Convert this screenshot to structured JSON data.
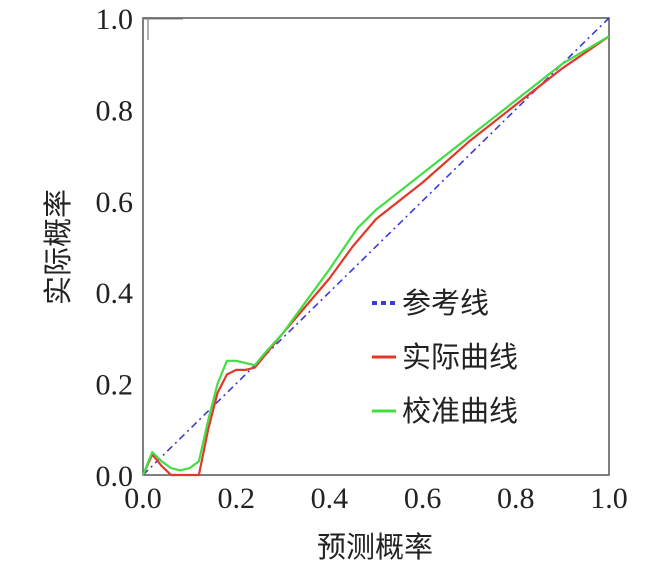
{
  "chart_data": {
    "type": "line",
    "title": "",
    "xlabel": "预测概率",
    "ylabel": "实际概率",
    "xlim": [
      0.0,
      1.0
    ],
    "ylim": [
      0.0,
      1.0
    ],
    "x_ticks": [
      "0.0",
      "0.2",
      "0.4",
      "0.6",
      "0.8",
      "1.0"
    ],
    "y_ticks": [
      "0.0",
      "0.2",
      "0.4",
      "0.6",
      "0.8",
      "1.0"
    ],
    "grid": false,
    "legend_position": "center-right",
    "series": [
      {
        "name": "参考线",
        "style": "dashed",
        "color": "#3b3bd6",
        "x": [
          0.0,
          1.0
        ],
        "y": [
          0.0,
          1.0
        ]
      },
      {
        "name": "实际曲线",
        "style": "solid",
        "color": "#e0392b",
        "x": [
          0.0,
          0.02,
          0.04,
          0.06,
          0.08,
          0.1,
          0.12,
          0.14,
          0.16,
          0.18,
          0.2,
          0.22,
          0.24,
          0.26,
          0.3,
          0.35,
          0.4,
          0.45,
          0.5,
          0.6,
          0.7,
          0.8,
          0.9,
          1.0
        ],
        "y": [
          0.0,
          0.045,
          0.02,
          0.0,
          0.0,
          0.0,
          0.0,
          0.1,
          0.18,
          0.22,
          0.23,
          0.23,
          0.235,
          0.26,
          0.31,
          0.37,
          0.43,
          0.5,
          0.56,
          0.64,
          0.73,
          0.81,
          0.89,
          0.96
        ]
      },
      {
        "name": "校准曲线",
        "style": "solid",
        "color": "#44dd44",
        "x": [
          0.0,
          0.02,
          0.04,
          0.06,
          0.08,
          0.1,
          0.12,
          0.14,
          0.16,
          0.18,
          0.2,
          0.22,
          0.24,
          0.26,
          0.3,
          0.35,
          0.4,
          0.46,
          0.5,
          0.6,
          0.7,
          0.8,
          0.9,
          1.0
        ],
        "y": [
          0.0,
          0.05,
          0.03,
          0.015,
          0.01,
          0.015,
          0.03,
          0.12,
          0.2,
          0.25,
          0.25,
          0.245,
          0.24,
          0.265,
          0.31,
          0.38,
          0.45,
          0.54,
          0.58,
          0.66,
          0.74,
          0.82,
          0.9,
          0.96
        ]
      }
    ]
  }
}
